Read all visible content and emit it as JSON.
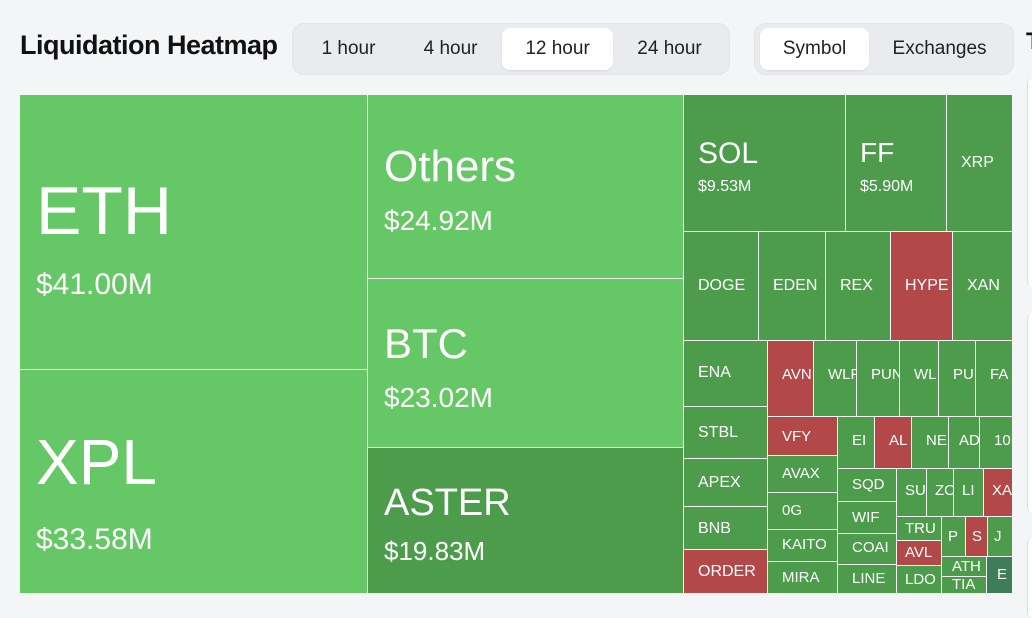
{
  "header": {
    "title": "Liquidation Heatmap",
    "time_options": [
      "1 hour",
      "4 hour",
      "12 hour",
      "24 hour"
    ],
    "time_selected": "12 hour",
    "group_options": [
      "Symbol",
      "Exchanges"
    ],
    "group_selected": "Symbol",
    "cut_text": "T"
  },
  "colors": {
    "bright_green": "#66c766",
    "dark_green": "#4c9c4c",
    "red": "#b34848",
    "teal": "#3f7d58"
  },
  "chart_data": {
    "type": "treemap",
    "title": "Liquidation Heatmap",
    "unit": "USD",
    "tiles": [
      {
        "symbol": "ETH",
        "value_label": "$41.00M",
        "value_musd": 41.0,
        "color": "bright_green"
      },
      {
        "symbol": "XPL",
        "value_label": "$33.58M",
        "value_musd": 33.58,
        "color": "bright_green"
      },
      {
        "symbol": "Others",
        "value_label": "$24.92M",
        "value_musd": 24.92,
        "color": "bright_green"
      },
      {
        "symbol": "BTC",
        "value_label": "$23.02M",
        "value_musd": 23.02,
        "color": "bright_green"
      },
      {
        "symbol": "ASTER",
        "value_label": "$19.83M",
        "value_musd": 19.83,
        "color": "dark_green"
      },
      {
        "symbol": "SOL",
        "value_label": "$9.53M",
        "value_musd": 9.53,
        "color": "dark_green"
      },
      {
        "symbol": "FF",
        "value_label": "$5.90M",
        "value_musd": 5.9,
        "color": "dark_green"
      },
      {
        "symbol": "XRP",
        "color": "dark_green"
      },
      {
        "symbol": "DOGE",
        "color": "dark_green"
      },
      {
        "symbol": "EDEN",
        "color": "dark_green"
      },
      {
        "symbol": "REX",
        "color": "dark_green"
      },
      {
        "symbol": "HYPE",
        "color": "red"
      },
      {
        "symbol": "XAN",
        "color": "dark_green"
      },
      {
        "symbol": "ENA",
        "color": "dark_green"
      },
      {
        "symbol": "AVN",
        "color": "red"
      },
      {
        "symbol": "WLF",
        "color": "dark_green"
      },
      {
        "symbol": "PUN",
        "color": "dark_green"
      },
      {
        "symbol": "WL",
        "color": "dark_green"
      },
      {
        "symbol": "PU",
        "color": "dark_green"
      },
      {
        "symbol": "FA",
        "color": "dark_green"
      },
      {
        "symbol": "STBL",
        "color": "dark_green"
      },
      {
        "symbol": "VFY",
        "color": "red"
      },
      {
        "symbol": "EI",
        "color": "dark_green"
      },
      {
        "symbol": "AL",
        "color": "red"
      },
      {
        "symbol": "NE",
        "color": "dark_green"
      },
      {
        "symbol": "AD",
        "color": "dark_green"
      },
      {
        "symbol": "10",
        "color": "dark_green"
      },
      {
        "symbol": "APEX",
        "color": "dark_green"
      },
      {
        "symbol": "AVAX",
        "color": "dark_green"
      },
      {
        "symbol": "SQD",
        "color": "dark_green"
      },
      {
        "symbol": "SU",
        "color": "dark_green"
      },
      {
        "symbol": "ZO",
        "color": "dark_green"
      },
      {
        "symbol": "LI",
        "color": "dark_green"
      },
      {
        "symbol": "XA",
        "color": "red"
      },
      {
        "symbol": "BNB",
        "color": "dark_green"
      },
      {
        "symbol": "0G",
        "color": "dark_green"
      },
      {
        "symbol": "WIF",
        "color": "dark_green"
      },
      {
        "symbol": "TRU",
        "color": "dark_green"
      },
      {
        "symbol": "P",
        "color": "dark_green"
      },
      {
        "symbol": "S",
        "color": "red"
      },
      {
        "symbol": "J",
        "color": "dark_green"
      },
      {
        "symbol": "KAITO",
        "color": "dark_green"
      },
      {
        "symbol": "COAI",
        "color": "dark_green"
      },
      {
        "symbol": "AVL",
        "color": "red"
      },
      {
        "symbol": "ATH",
        "color": "dark_green"
      },
      {
        "symbol": "ORDER",
        "color": "red"
      },
      {
        "symbol": "MIRA",
        "color": "dark_green"
      },
      {
        "symbol": "LINE",
        "color": "dark_green"
      },
      {
        "symbol": "LDO",
        "color": "dark_green"
      },
      {
        "symbol": "TIA",
        "color": "dark_green"
      },
      {
        "symbol": "E",
        "color": "teal"
      }
    ]
  }
}
